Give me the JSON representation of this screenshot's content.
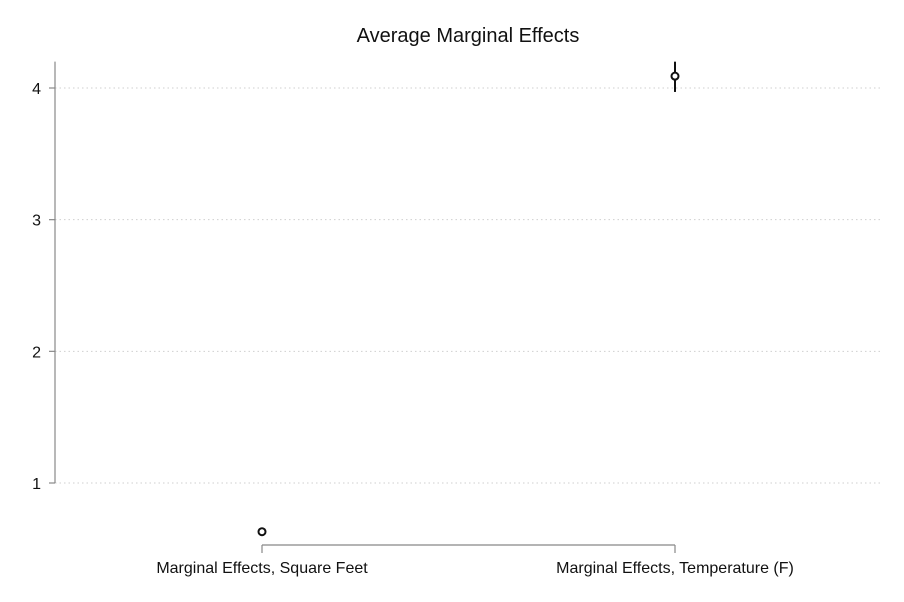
{
  "chart_data": {
    "type": "scatter",
    "title": "Average Marginal Effects",
    "xlabel": "",
    "ylabel": "",
    "categories": [
      "Marginal Effects, Square Feet",
      "Marginal Effects, Temperature (F)"
    ],
    "points": [
      {
        "category": "Marginal Effects, Square Feet",
        "estimate": 0.63,
        "ci_low": 0.62,
        "ci_high": 0.64
      },
      {
        "category": "Marginal Effects, Temperature (F)",
        "estimate": 4.09,
        "ci_low": 3.97,
        "ci_high": 4.2
      }
    ],
    "y_ticks": [
      1,
      2,
      3,
      4
    ],
    "ylim": [
      0.53,
      4.2
    ],
    "grid": true,
    "grid_style": "dotted",
    "marker": "hollow-circle",
    "colors": {
      "marker": "#111111",
      "grid": "#cfcfcf",
      "axis": "#888888"
    }
  }
}
